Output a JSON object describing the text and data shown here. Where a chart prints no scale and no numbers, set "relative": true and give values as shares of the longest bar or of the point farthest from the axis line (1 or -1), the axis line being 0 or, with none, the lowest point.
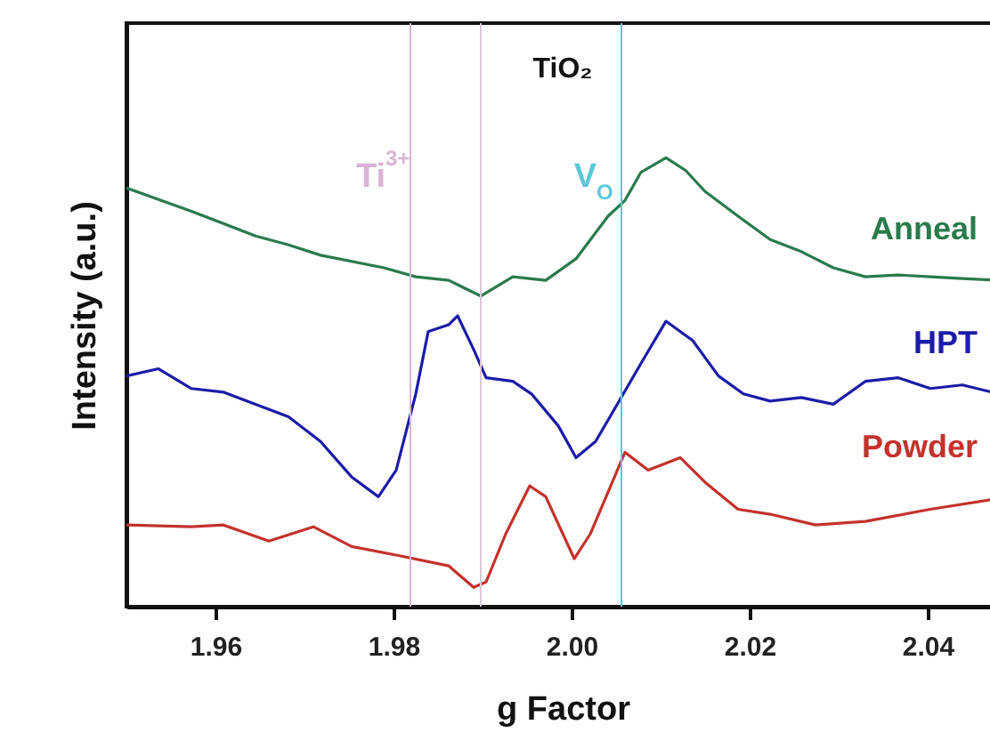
{
  "chart_data": {
    "type": "line",
    "title": "TiO₂",
    "xlabel": "g Factor",
    "ylabel": "Intensity (a.u.)",
    "relative": true,
    "tick_labels": "x",
    "xlim": [
      1.95,
      2.048
    ],
    "xticks": [
      1.96,
      1.98,
      {
        "value": 2.0,
        "label": "2.00"
      },
      2.02,
      2.04
    ],
    "grid": false,
    "ref_lines": [
      {
        "axis": "x",
        "value": 1.9819,
        "label": "Ti$^{3+}$",
        "color": "#d9b3d5"
      },
      {
        "axis": "x",
        "value": 1.9898,
        "color": "#d9c8d6"
      },
      {
        "axis": "x",
        "value": 2.0056,
        "label": "V$_{O}$",
        "color": "#5cc8d8"
      }
    ],
    "series": [
      {
        "name": "Anneal",
        "color": "#2a7a4c",
        "x": [
          1.95,
          1.9573,
          1.9645,
          1.9682,
          1.9718,
          1.9789,
          1.9825,
          1.9862,
          1.9898,
          1.9934,
          1.9971,
          2.0005,
          2.0041,
          2.006,
          2.0078,
          2.0106,
          2.0128,
          2.015,
          2.0187,
          2.0223,
          2.0258,
          2.0294,
          2.033,
          2.0367,
          2.0403,
          2.0439,
          2.048
        ],
        "values": [
          0.933,
          0.881,
          0.826,
          0.806,
          0.783,
          0.755,
          0.735,
          0.727,
          0.692,
          0.735,
          0.727,
          0.775,
          0.87,
          0.905,
          0.968,
          1.0,
          0.972,
          0.925,
          0.87,
          0.818,
          0.791,
          0.755,
          0.735,
          0.739,
          0.735,
          0.731,
          0.727
        ]
      },
      {
        "name": "HPT",
        "color": "#1c1ca8",
        "x": [
          1.95,
          1.9536,
          1.9573,
          1.9609,
          1.9645,
          1.9682,
          1.9718,
          1.9753,
          1.9783,
          1.9803,
          1.9825,
          1.9839,
          1.9862,
          1.9872,
          1.989,
          1.9904,
          1.9934,
          1.9955,
          1.9985,
          2.0005,
          2.0027,
          2.0049,
          2.0078,
          2.0106,
          2.0136,
          2.0165,
          2.0193,
          2.0223,
          2.0258,
          2.0294,
          2.033,
          2.0367,
          2.0403,
          2.0439,
          2.048
        ],
        "values": [
          0.514,
          0.53,
          0.486,
          0.478,
          0.451,
          0.423,
          0.368,
          0.289,
          0.245,
          0.304,
          0.474,
          0.613,
          0.628,
          0.648,
          0.573,
          0.51,
          0.502,
          0.474,
          0.403,
          0.332,
          0.368,
          0.443,
          0.542,
          0.636,
          0.593,
          0.514,
          0.474,
          0.458,
          0.466,
          0.451,
          0.502,
          0.51,
          0.486,
          0.494,
          0.474
        ]
      },
      {
        "name": "Powder",
        "color": "#c4322c",
        "x": [
          1.95,
          1.9573,
          1.9609,
          1.966,
          1.971,
          1.9753,
          1.9803,
          1.9862,
          1.989,
          1.9904,
          1.9926,
          1.9953,
          1.9971,
          2.0003,
          2.0021,
          2.006,
          2.0086,
          2.0122,
          2.015,
          2.0187,
          2.0223,
          2.0274,
          2.033,
          2.0403,
          2.048
        ],
        "values": [
          0.182,
          0.178,
          0.182,
          0.146,
          0.178,
          0.134,
          0.115,
          0.091,
          0.043,
          0.055,
          0.162,
          0.269,
          0.245,
          0.107,
          0.162,
          0.344,
          0.304,
          0.332,
          0.277,
          0.217,
          0.206,
          0.182,
          0.19,
          0.217,
          0.241
        ]
      }
    ]
  }
}
